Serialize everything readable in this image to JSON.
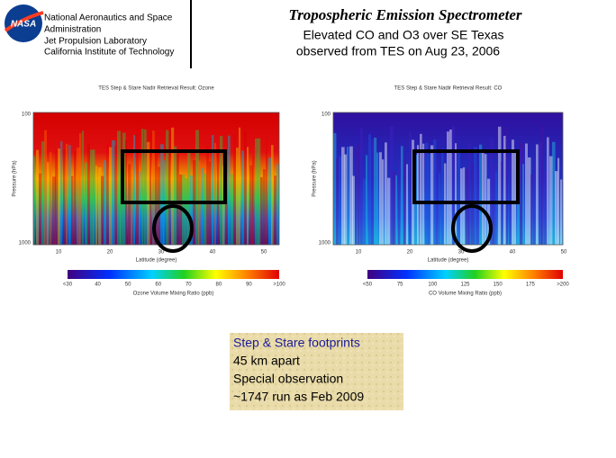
{
  "header": {
    "org": [
      "National Aeronautics and Space",
      "Administration",
      "Jet Propulsion Laboratory",
      "California Institute of Technology"
    ],
    "title": "Tropospheric Emission Spectrometer",
    "subtitle": [
      "Elevated CO and O3 over SE Texas",
      "observed from TES on Aug 23, 2006"
    ]
  },
  "panels": [
    {
      "title": "TES Step & Stare Nadir Retrieval Result: Ozone",
      "x_label": "Latitude (degree)",
      "y_label": "Pressure (hPa)",
      "colorbar_label": "Ozone Volume Mixing Ratio (ppb)",
      "colorbar_ticks": [
        "<30",
        "40",
        "50",
        "60",
        "70",
        "80",
        "90",
        ">100"
      ],
      "x_ticks": [
        "10",
        "20",
        "30",
        "40",
        "50"
      ],
      "y_ticks": [
        "100",
        "1000"
      ]
    },
    {
      "title": "TES Step & Stare Nadir Retrieval Result: CO",
      "x_label": "Latitude (degree)",
      "y_label": "Pressure (hPa)",
      "colorbar_label": "CO Volume Mixing Ratio (ppb)",
      "colorbar_ticks": [
        "<50",
        "75",
        "100",
        "125",
        "150",
        "175",
        ">200"
      ],
      "x_ticks": [
        "10",
        "20",
        "30",
        "40",
        "50"
      ],
      "y_ticks": [
        "100",
        "1000"
      ]
    }
  ],
  "note": [
    "Step & Stare footprints",
    "45 km apart",
    "Special observation",
    "~1747 run as Feb 2009"
  ]
}
